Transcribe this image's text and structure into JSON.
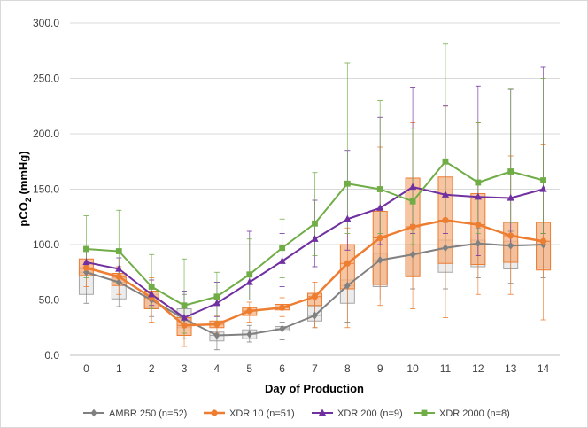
{
  "chart_data": {
    "type": "line",
    "title": "",
    "xlabel": "Day of Production",
    "ylabel_main": "pCO",
    "ylabel_sub": "2",
    "ylabel_unit": " (mmHg)",
    "x": [
      0,
      1,
      2,
      3,
      4,
      5,
      6,
      7,
      8,
      9,
      10,
      11,
      12,
      13,
      14
    ],
    "xlim": [
      -0.5,
      14.5
    ],
    "ylim": [
      0,
      300
    ],
    "yticks": [
      0,
      50,
      100,
      150,
      200,
      250,
      300
    ],
    "ytick_labels": [
      "0.0",
      "50.0",
      "100.0",
      "150.0",
      "200.0",
      "250.0",
      "300.0"
    ],
    "grid": "horizontal",
    "legend_position": "bottom",
    "series": [
      {
        "name": "AMBR 250 (n=52)",
        "color": "#808080",
        "marker": "diamond",
        "values": [
          75,
          66,
          50,
          33,
          18,
          19,
          24,
          36,
          63,
          86,
          91,
          97,
          101,
          99,
          100
        ],
        "box_q1": [
          55,
          51,
          43,
          25,
          13,
          15,
          22,
          31,
          47,
          62,
          72,
          75,
          80,
          78,
          79
        ],
        "box_q3": [
          78,
          70,
          55,
          42,
          21,
          23,
          26,
          44,
          68,
          92,
          100,
          104,
          104,
          103,
          103
        ],
        "whisker_low": [
          47,
          44,
          35,
          15,
          5,
          12,
          14,
          25,
          30,
          50,
          60,
          60,
          70,
          65,
          70
        ],
        "whisker_high": [
          85,
          80,
          62,
          55,
          28,
          27,
          30,
          55,
          85,
          105,
          118,
          120,
          115,
          112,
          110
        ]
      },
      {
        "name": "XDR 10 (n=51)",
        "color": "#ed7d31",
        "marker": "circle",
        "values": [
          79,
          71,
          52,
          27,
          28,
          40,
          43,
          53,
          83,
          106,
          116,
          122,
          118,
          108,
          103
        ],
        "box_q1": [
          72,
          63,
          42,
          18,
          25,
          36,
          41,
          45,
          60,
          64,
          71,
          83,
          82,
          84,
          77
        ],
        "box_q3": [
          87,
          74,
          58,
          34,
          31,
          43,
          46,
          56,
          100,
          130,
          160,
          161,
          146,
          120,
          120
        ],
        "whisker_low": [
          62,
          55,
          30,
          8,
          20,
          30,
          35,
          25,
          25,
          45,
          42,
          34,
          55,
          55,
          32
        ],
        "whisker_high": [
          95,
          80,
          70,
          46,
          36,
          48,
          52,
          66,
          115,
          188,
          210,
          225,
          210,
          180,
          190
        ]
      },
      {
        "name": "XDR 200 (n=9)",
        "color": "#7030a0",
        "marker": "triangle",
        "values": [
          84,
          78,
          55,
          34,
          47,
          66,
          85,
          105,
          123,
          133,
          152,
          145,
          143,
          142,
          150
        ],
        "box_q1": [],
        "box_q3": [],
        "whisker_low": [
          78,
          70,
          45,
          22,
          35,
          50,
          62,
          80,
          95,
          100,
          110,
          110,
          90,
          100,
          110
        ],
        "whisker_high": [
          95,
          88,
          68,
          58,
          66,
          112,
          110,
          140,
          185,
          215,
          242,
          225,
          243,
          240,
          260
        ]
      },
      {
        "name": "XDR 2000 (n=8)",
        "color": "#70ad47",
        "marker": "square",
        "values": [
          96,
          94,
          62,
          45,
          53,
          73,
          97,
          119,
          155,
          150,
          139,
          175,
          156,
          166,
          158
        ],
        "box_q1": [],
        "box_q3": [],
        "whisker_low": [
          70,
          65,
          42,
          20,
          30,
          50,
          70,
          90,
          110,
          110,
          100,
          120,
          110,
          120,
          110
        ],
        "whisker_high": [
          126,
          131,
          91,
          87,
          75,
          105,
          123,
          165,
          264,
          230,
          205,
          281,
          210,
          241,
          250
        ]
      }
    ]
  }
}
